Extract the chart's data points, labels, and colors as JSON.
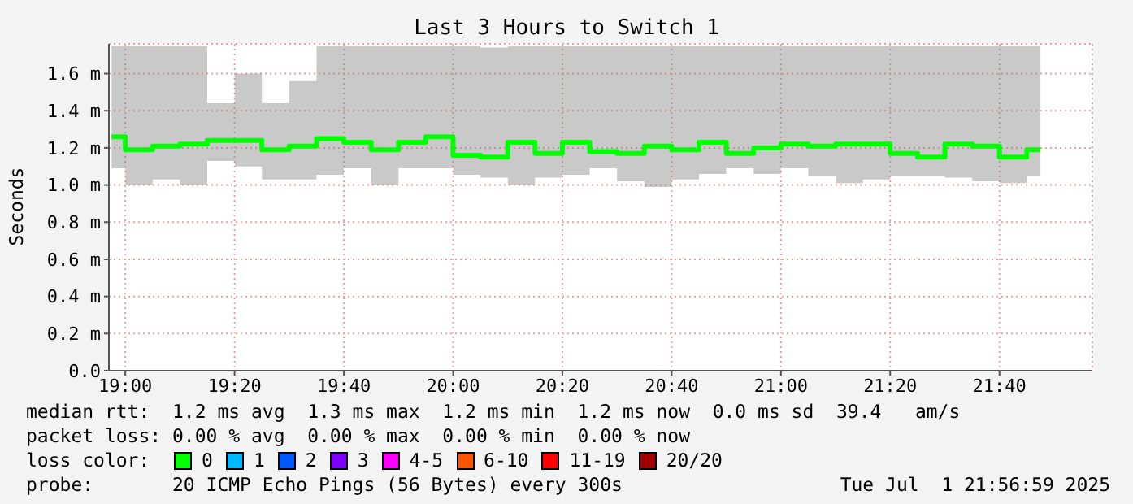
{
  "chart_data": {
    "type": "step",
    "title": "Last 3 Hours to Switch 1",
    "ylabel": "Seconds",
    "legend_title": "loss color:",
    "x": [
      18.9583,
      19.0417,
      19.125,
      19.2083,
      19.2917,
      19.375,
      19.4583,
      19.5417,
      19.625,
      19.7083,
      19.7917,
      19.875,
      19.9583,
      20.0417,
      20.125,
      20.2083,
      20.2917,
      20.375,
      20.4583,
      20.5417,
      20.625,
      20.7083,
      20.7917,
      20.875,
      20.9583,
      21.0417,
      21.125,
      21.2083,
      21.2917,
      21.375,
      21.4583,
      21.5417,
      21.625,
      21.7083,
      21.7917
    ],
    "series": [
      {
        "name": "0",
        "color": "#00ff00",
        "values": [
          1.26,
          1.19,
          1.21,
          1.22,
          1.24,
          1.24,
          1.19,
          1.21,
          1.25,
          1.23,
          1.19,
          1.23,
          1.26,
          1.16,
          1.15,
          1.23,
          1.17,
          1.23,
          1.18,
          1.17,
          1.21,
          1.19,
          1.23,
          1.17,
          1.2,
          1.22,
          1.21,
          1.22,
          1.22,
          1.17,
          1.15,
          1.22,
          1.21,
          1.15,
          1.19
        ],
        "lower": [
          1.09,
          1.0,
          1.03,
          1.0,
          1.13,
          1.1,
          1.03,
          1.03,
          1.055,
          1.09,
          1.0,
          1.09,
          1.09,
          1.055,
          1.04,
          1.0,
          1.04,
          1.055,
          1.09,
          1.02,
          0.99,
          1.03,
          1.06,
          1.09,
          1.06,
          1.09,
          1.05,
          1.01,
          1.03,
          1.05,
          1.05,
          1.04,
          1.02,
          1.01,
          1.05
        ],
        "upper": [
          1.75,
          1.75,
          1.75,
          1.75,
          1.44,
          1.6,
          1.44,
          1.56,
          1.75,
          1.75,
          1.75,
          1.75,
          1.75,
          1.75,
          1.74,
          1.75,
          1.75,
          1.75,
          1.75,
          1.75,
          1.75,
          1.75,
          1.75,
          1.75,
          1.75,
          1.75,
          1.75,
          1.75,
          1.75,
          1.75,
          1.75,
          1.75,
          1.75,
          1.75,
          1.75
        ]
      },
      {
        "name": "1",
        "color": "#00b8ff",
        "values": [
          null,
          null,
          null,
          null,
          null,
          null,
          null,
          null,
          null,
          null,
          null,
          null,
          null,
          null,
          null,
          null,
          null,
          null,
          null,
          null,
          null,
          null,
          null,
          null,
          null,
          null,
          null,
          null,
          null,
          null,
          null,
          null,
          null,
          null,
          null
        ]
      },
      {
        "name": "2",
        "color": "#0059ff",
        "values": [
          null,
          null,
          null,
          null,
          null,
          null,
          null,
          null,
          null,
          null,
          null,
          null,
          null,
          null,
          null,
          null,
          null,
          null,
          null,
          null,
          null,
          null,
          null,
          null,
          null,
          null,
          null,
          null,
          null,
          null,
          null,
          null,
          null,
          null,
          null
        ]
      },
      {
        "name": "3",
        "color": "#7e00ff",
        "values": [
          null,
          null,
          null,
          null,
          null,
          null,
          null,
          null,
          null,
          null,
          null,
          null,
          null,
          null,
          null,
          null,
          null,
          null,
          null,
          null,
          null,
          null,
          null,
          null,
          null,
          null,
          null,
          null,
          null,
          null,
          null,
          null,
          null,
          null,
          null
        ]
      },
      {
        "name": "4-5",
        "color": "#ff00ff",
        "values": [
          null,
          null,
          null,
          null,
          null,
          null,
          null,
          null,
          null,
          null,
          null,
          null,
          null,
          null,
          null,
          null,
          null,
          null,
          null,
          null,
          null,
          null,
          null,
          null,
          null,
          null,
          null,
          null,
          null,
          null,
          null,
          null,
          null,
          null,
          null
        ]
      },
      {
        "name": "6-10",
        "color": "#ff5500",
        "values": [
          null,
          null,
          null,
          null,
          null,
          null,
          null,
          null,
          null,
          null,
          null,
          null,
          null,
          null,
          null,
          null,
          null,
          null,
          null,
          null,
          null,
          null,
          null,
          null,
          null,
          null,
          null,
          null,
          null,
          null,
          null,
          null,
          null,
          null,
          null
        ]
      },
      {
        "name": "11-19",
        "color": "#ff0000",
        "values": [
          null,
          null,
          null,
          null,
          null,
          null,
          null,
          null,
          null,
          null,
          null,
          null,
          null,
          null,
          null,
          null,
          null,
          null,
          null,
          null,
          null,
          null,
          null,
          null,
          null,
          null,
          null,
          null,
          null,
          null,
          null,
          null,
          null,
          null,
          null
        ]
      },
      {
        "name": "20/20",
        "color": "#a10000",
        "values": [
          null,
          null,
          null,
          null,
          null,
          null,
          null,
          null,
          null,
          null,
          null,
          null,
          null,
          null,
          null,
          null,
          null,
          null,
          null,
          null,
          null,
          null,
          null,
          null,
          null,
          null,
          null,
          null,
          null,
          null,
          null,
          null,
          null,
          null,
          null
        ]
      }
    ],
    "xlim": [
      18.95,
      21.95
    ],
    "xticks": [
      {
        "value": 19,
        "label": "19:00"
      },
      {
        "value": 19.3333,
        "label": "19:20"
      },
      {
        "value": 19.6667,
        "label": "19:40"
      },
      {
        "value": 20,
        "label": "20:00"
      },
      {
        "value": 20.3333,
        "label": "20:20"
      },
      {
        "value": 20.6667,
        "label": "20:40"
      },
      {
        "value": 21,
        "label": "21:00"
      },
      {
        "value": 21.3333,
        "label": "21:20"
      },
      {
        "value": 21.6667,
        "label": "21:40"
      }
    ],
    "ylim": [
      0,
      1.76
    ],
    "yticks": [
      {
        "value": 0,
        "label": "0.0"
      },
      {
        "value": 0.2,
        "label": "0.2 m"
      },
      {
        "value": 0.4,
        "label": "0.4 m"
      },
      {
        "value": 0.6,
        "label": "0.6 m"
      },
      {
        "value": 0.8,
        "label": "0.8 m"
      },
      {
        "value": 1.0,
        "label": "1.0 m"
      },
      {
        "value": 1.2,
        "label": "1.2 m"
      },
      {
        "value": 1.4,
        "label": "1.4 m"
      },
      {
        "value": 1.6,
        "label": "1.6 m"
      }
    ],
    "grid": true,
    "legend": "bottom",
    "annotations": [
      "median rtt:  1.2 ms avg  1.3 ms max  1.2 ms min  1.2 ms now  0.0 ms sd  39.4   am/s",
      "packet loss: 0.00 % avg  0.00 % max  0.00 % min  0.00 % now",
      "probe:       20 ICMP Echo Pings (56 Bytes) every 300s",
      "Tue Jul  1 21:56:59 2025"
    ]
  }
}
